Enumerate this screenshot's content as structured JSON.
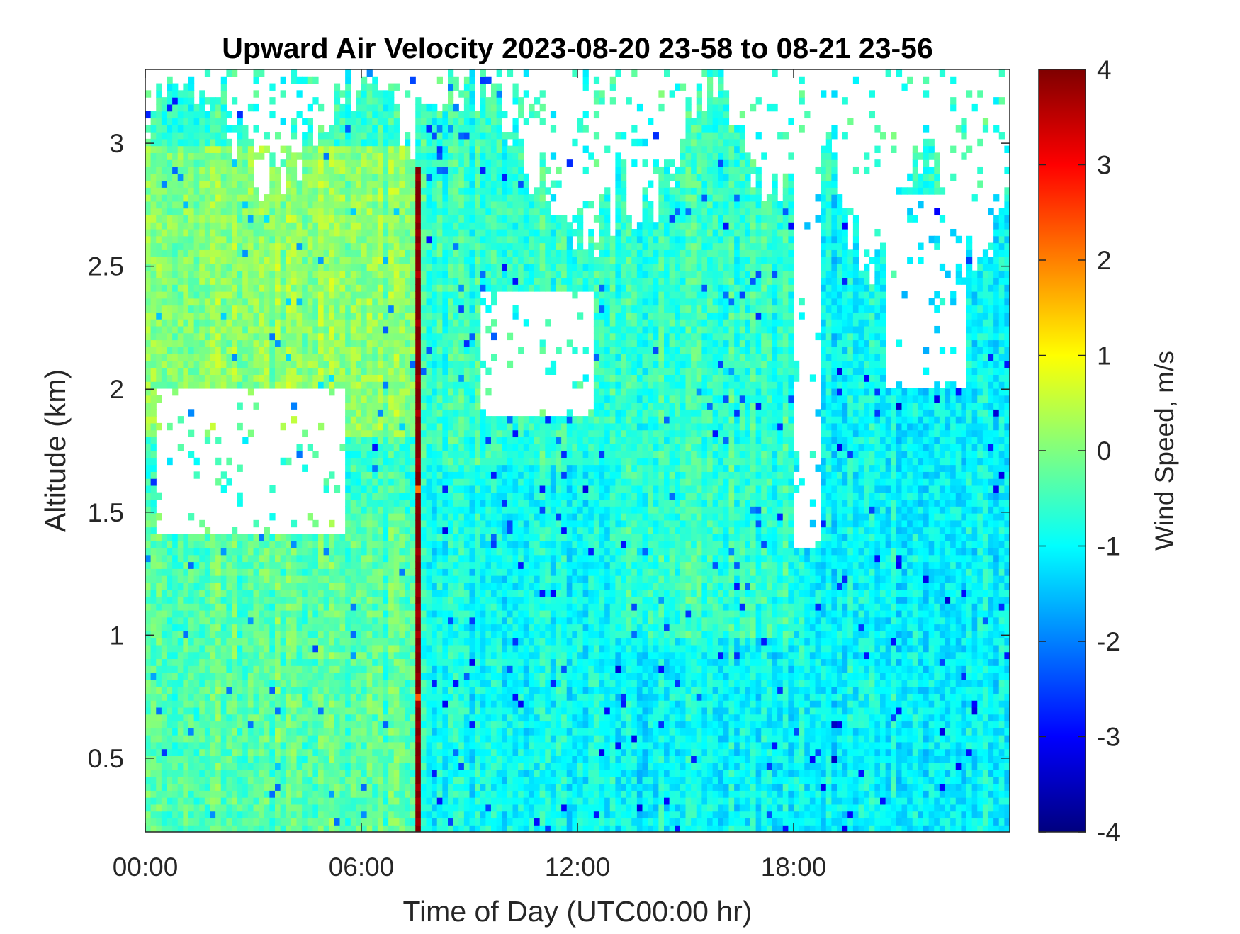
{
  "chart_data": {
    "type": "heatmap",
    "title": "Upward Air Velocity 2023-08-20 23-58 to 08-21 23-56",
    "xlabel": "Time of Day (UTC00:00 hr)",
    "ylabel": "Altitude (km)",
    "xlim": [
      0,
      24
    ],
    "ylim": [
      0.2,
      3.3
    ],
    "x_ticks": [
      0,
      6,
      12,
      18
    ],
    "x_tick_labels": [
      "00:00",
      "06:00",
      "12:00",
      "18:00"
    ],
    "y_ticks": [
      0.5,
      1,
      1.5,
      2,
      2.5,
      3
    ],
    "y_tick_labels": [
      "0.5",
      "1",
      "1.5",
      "2",
      "2.5",
      "3"
    ],
    "colorbar": {
      "label": "Wind Speed, m/s",
      "colormap": "jet",
      "clim": [
        -4,
        4
      ],
      "ticks": [
        -4,
        -3,
        -2,
        -1,
        0,
        1,
        2,
        3,
        4
      ],
      "tick_labels": [
        "-4",
        "-3",
        "-2",
        "-1",
        "0",
        "1",
        "2",
        "3",
        "4"
      ]
    },
    "grid": false,
    "regions": [
      {
        "x": [
          0,
          7.5
        ],
        "y": [
          0.2,
          1.5
        ],
        "value": -0.3
      },
      {
        "x": [
          0,
          7.5
        ],
        "y": [
          1.8,
          3.0
        ],
        "value": 0.1
      },
      {
        "x": [
          7.5,
          7.6
        ],
        "y": [
          0.2,
          2.9
        ],
        "value": 4.0
      },
      {
        "x": [
          7.6,
          13
        ],
        "y": [
          0.2,
          1.7
        ],
        "value": -0.9
      },
      {
        "x": [
          13,
          24
        ],
        "y": [
          0.2,
          1.0
        ],
        "value": -1.0
      },
      {
        "x": [
          18,
          24
        ],
        "y": [
          1.0,
          2.8
        ],
        "value": -1.0
      }
    ],
    "gaps": [
      {
        "x": [
          0.3,
          5.6
        ],
        "y": [
          1.4,
          2.0
        ]
      },
      {
        "x": [
          9.3,
          12.5
        ],
        "y": [
          1.9,
          2.4
        ]
      },
      {
        "x": [
          18.0,
          18.8
        ],
        "y": [
          1.35,
          3.1
        ]
      },
      {
        "x": [
          20.5,
          22.8
        ],
        "y": [
          2.0,
          2.8
        ]
      }
    ]
  }
}
